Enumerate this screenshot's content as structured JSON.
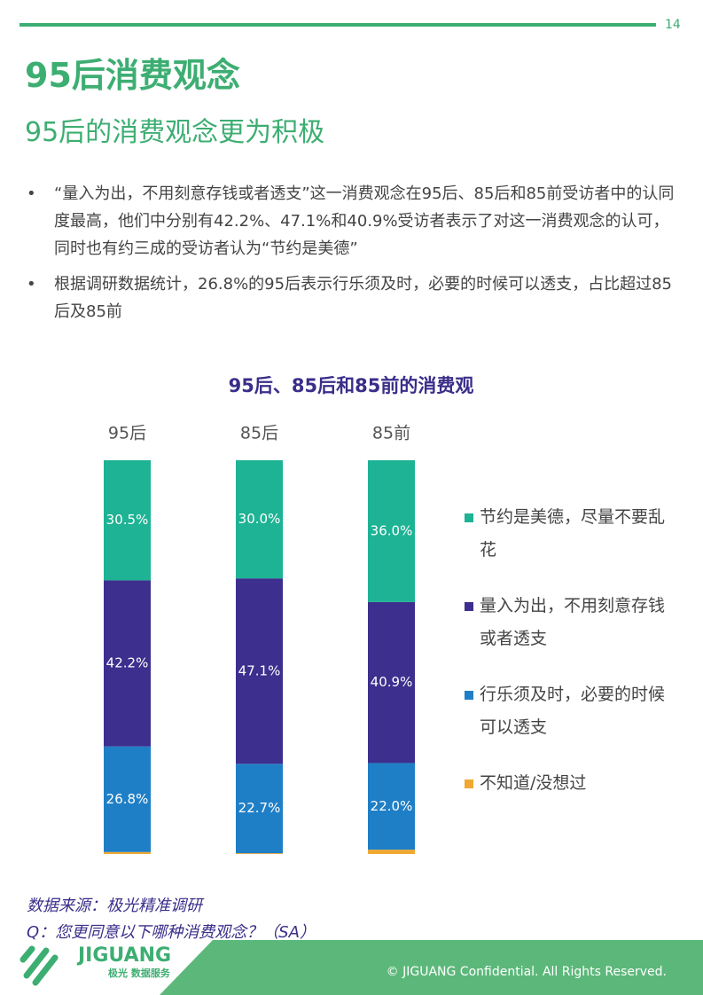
{
  "header": {
    "page_number": "14",
    "title": "95后消费观念",
    "subtitle": "95后的消费观念更为积极"
  },
  "bullets": [
    "“量入为出，不用刻意存钱或者透支”这一消费观念在95后、85后和85前受访者中的认同度最高，他们中分别有42.2%、47.1%和40.9%受访者表示了对这一消费观念的认可，同时也有约三成的受访者认为“节约是美德”",
    "根据调研数据统计，26.8%的95后表示行乐须及时，必要的时候可以透支，占比超过85后及85前"
  ],
  "chart_data": {
    "type": "stacked-bar",
    "title": "95后、85后和85前的消费观",
    "categories": [
      "95后",
      "85后",
      "85前"
    ],
    "series": [
      {
        "name": "节约是美德，尽量不要乱花",
        "color": "#1db394",
        "values": [
          30.5,
          30.0,
          36.0
        ],
        "value_labels": [
          "30.5%",
          "30.0%",
          "36.0%"
        ]
      },
      {
        "name": "量入为出，不用刻意存钱或者透支",
        "color": "#3c2f8e",
        "values": [
          42.2,
          47.1,
          40.9
        ],
        "value_labels": [
          "42.2%",
          "47.1%",
          "40.9%"
        ]
      },
      {
        "name": "行乐须及时，必要的时候可以透支",
        "color": "#1f7fc6",
        "values": [
          26.8,
          22.7,
          22.0
        ],
        "value_labels": [
          "26.8%",
          "22.7%",
          "22.0%"
        ]
      },
      {
        "name": "不知道/没想过",
        "color": "#f0a830",
        "values": [
          0.5,
          0.2,
          1.1
        ]
      }
    ]
  },
  "source": [
    "数据来源：极光精准调研",
    "Q：您更同意以下哪种消费观念？（SA）"
  ],
  "footer": {
    "logo": "JIGUANG",
    "logo_sub": "极光 数据服务",
    "copyright": "© JIGUANG  Confidential. All Rights Reserved."
  }
}
